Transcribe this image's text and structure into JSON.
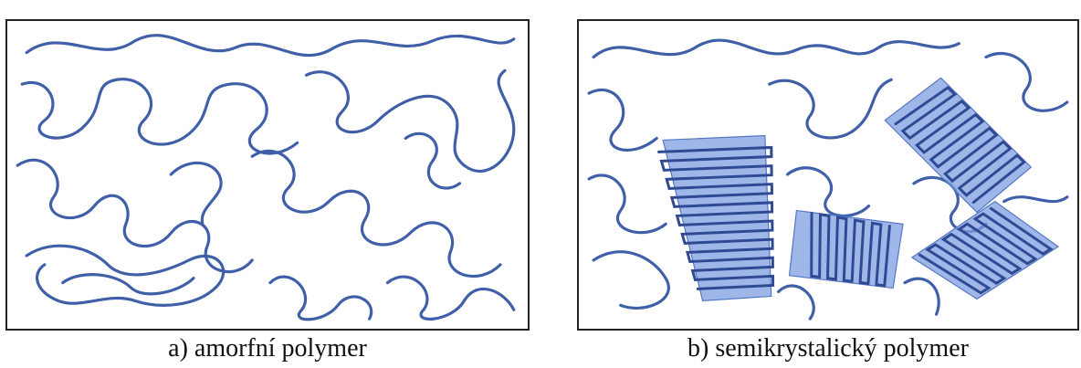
{
  "figure": {
    "panels": [
      {
        "id": "a",
        "caption": "a) amorfní polymer"
      },
      {
        "id": "b",
        "caption": "b) semikrystalický polymer"
      }
    ],
    "colors": {
      "chain": "#3f5fa8",
      "crystalline_region": "#7d9fe0"
    }
  }
}
